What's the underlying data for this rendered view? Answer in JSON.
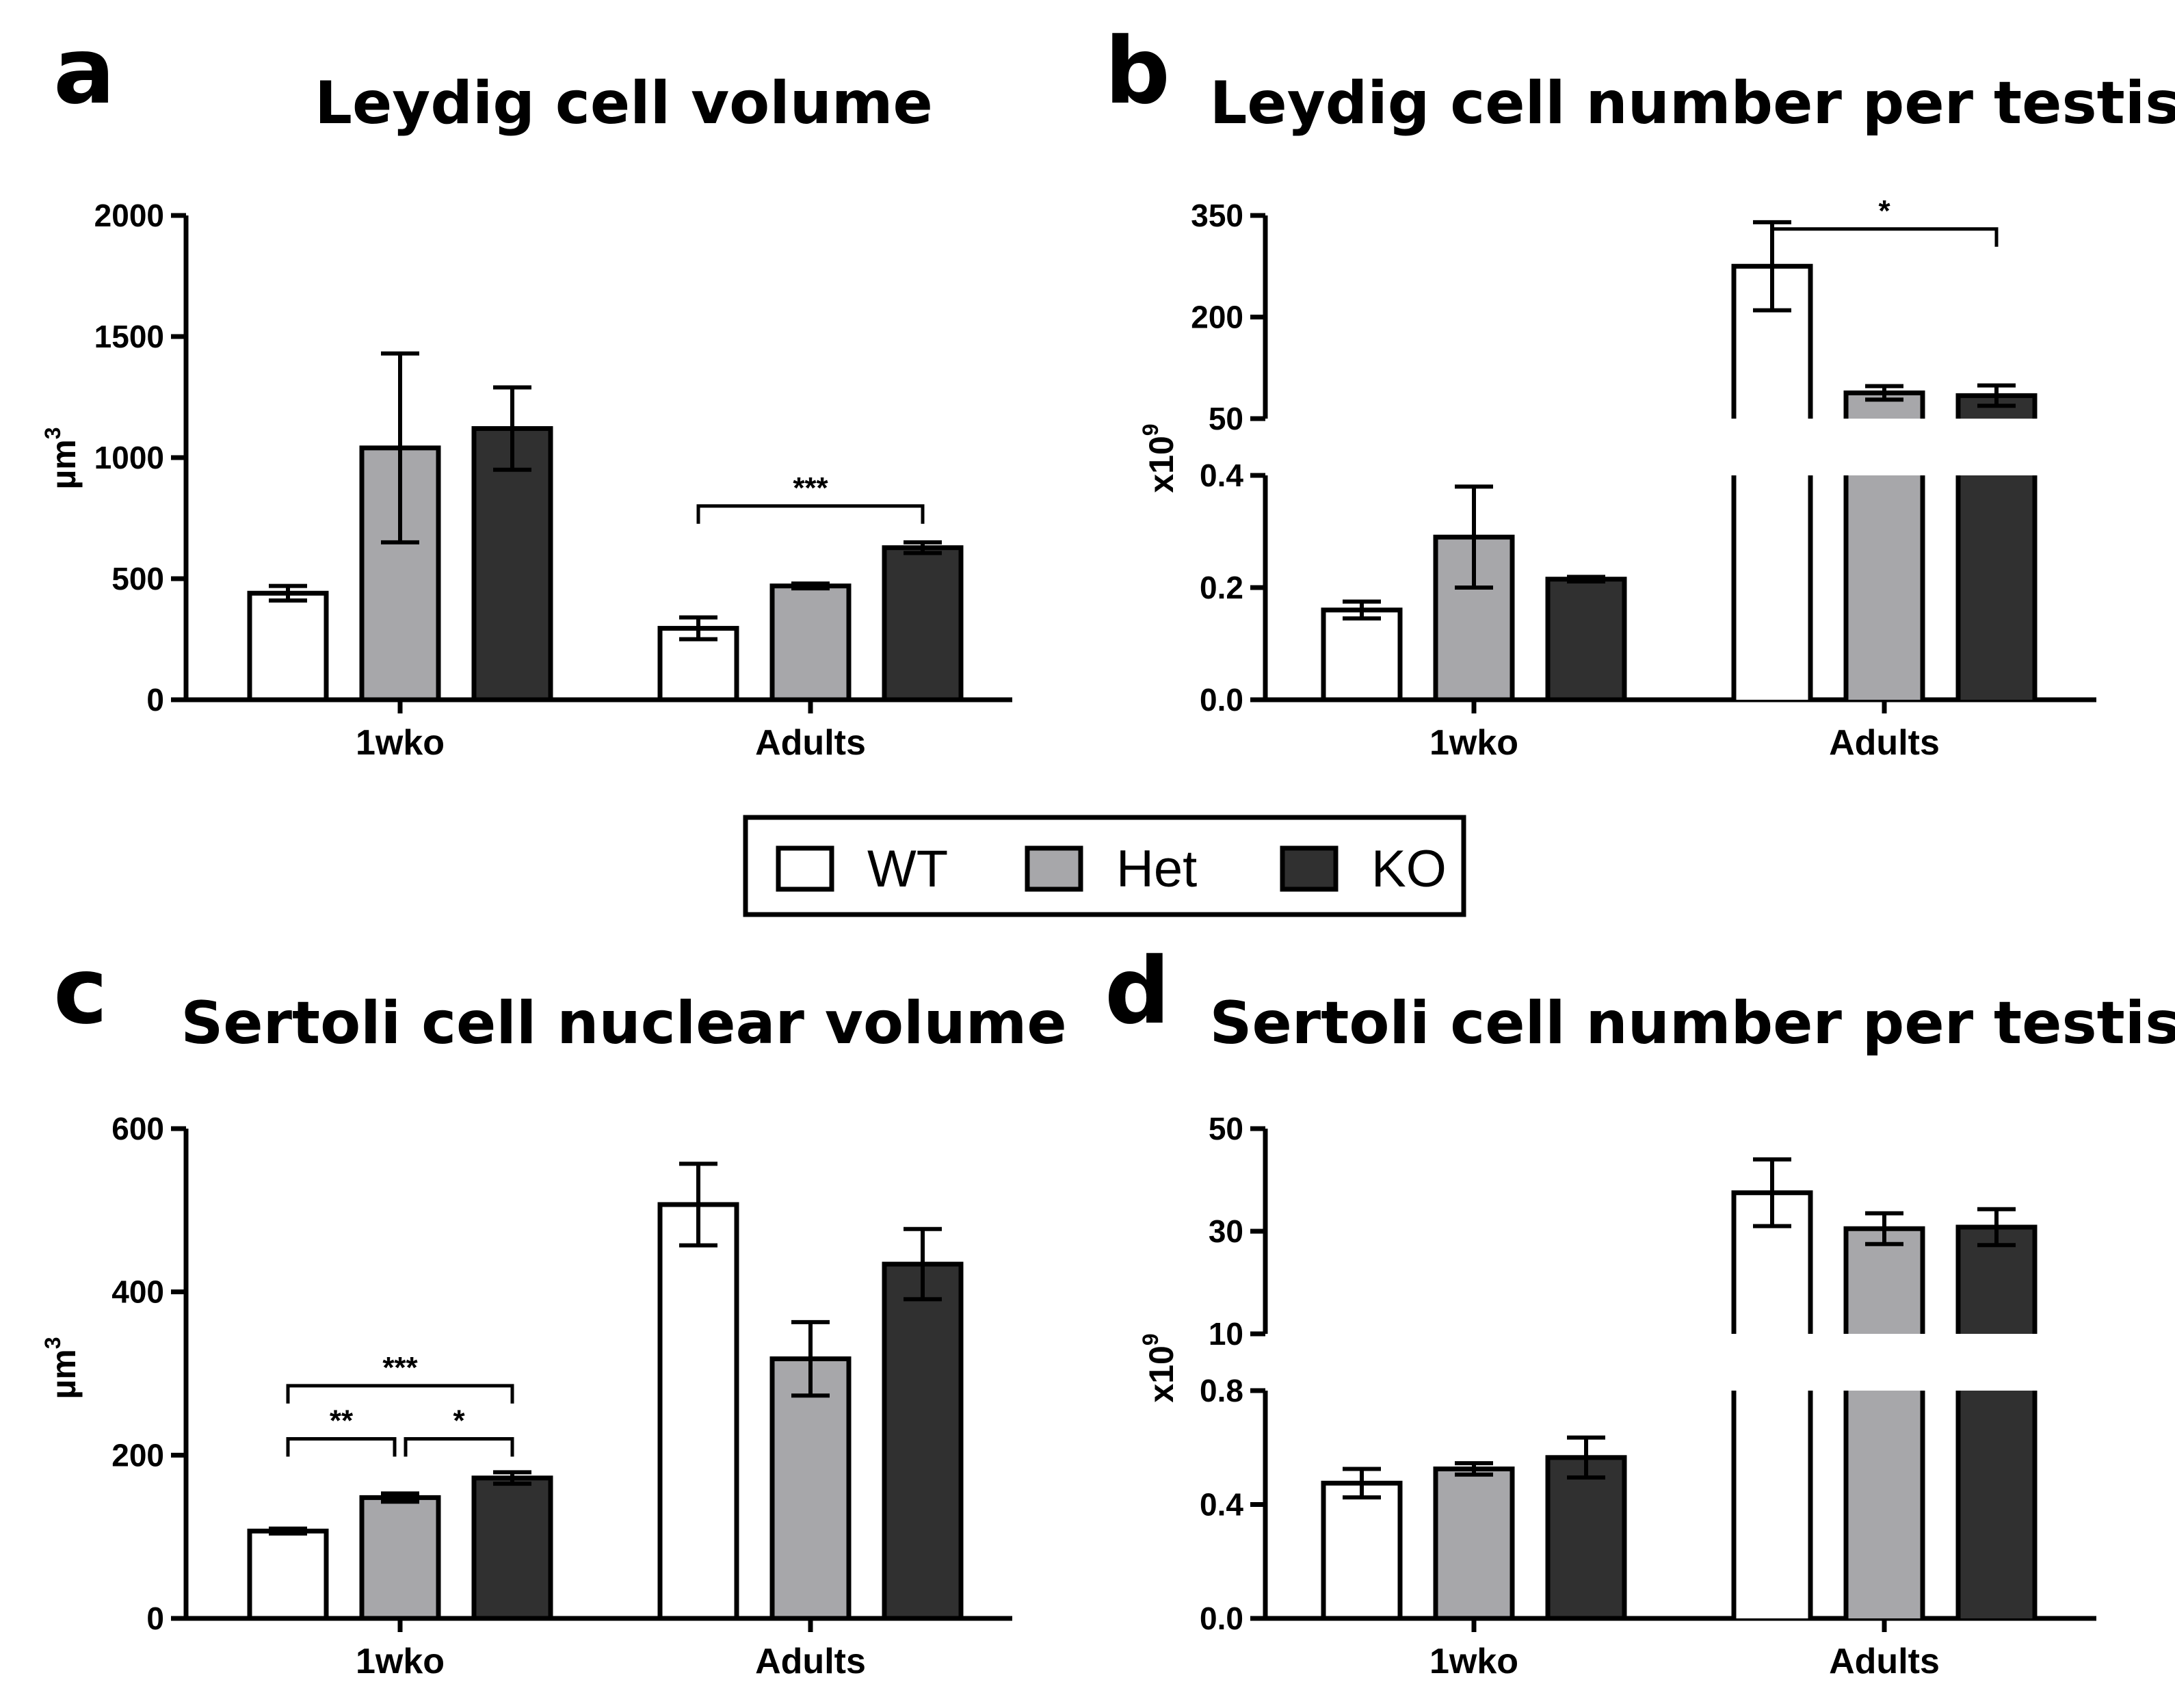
{
  "legend": {
    "entries": [
      {
        "name": "WT",
        "color": "#ffffff"
      },
      {
        "name": "Het",
        "color": "#a7a7aa"
      },
      {
        "name": "KO",
        "color": "#303030"
      }
    ]
  },
  "chart_data": [
    {
      "panel": "a",
      "type": "bar",
      "title": "Leydig cell volume",
      "ylabel": "µm",
      "ylabel_sup": "3",
      "categories": [
        "1wko",
        "Adults"
      ],
      "ylim": [
        0,
        2000
      ],
      "yticks": [
        "0",
        "500",
        "1000",
        "1500",
        "2000"
      ],
      "series": [
        {
          "name": "WT",
          "values": [
            440,
            295
          ],
          "errors": [
            30,
            45
          ]
        },
        {
          "name": "Het",
          "values": [
            1040,
            470
          ],
          "errors": [
            390,
            10
          ]
        },
        {
          "name": "KO",
          "values": [
            1120,
            628
          ],
          "errors": [
            170,
            22
          ]
        }
      ],
      "significance": [
        {
          "group": "Adults",
          "from": "WT",
          "to": "KO",
          "label": "***",
          "at": 800
        }
      ]
    },
    {
      "panel": "b",
      "type": "bar",
      "title": "Leydig cell number per testis",
      "ylabel": "x10",
      "ylabel_sup": "9",
      "categories": [
        "1wko",
        "Adults"
      ],
      "axis_break": {
        "lower_ylim": [
          0,
          0.4
        ],
        "upper_ylim": [
          50,
          350
        ],
        "lower_ticks": [
          "0.0",
          "0.2",
          "0.4"
        ],
        "upper_ticks": [
          "50",
          "200",
          "350"
        ]
      },
      "series": [
        {
          "name": "WT",
          "values": [
            0.16,
            275
          ],
          "errors": [
            0.015,
            65
          ]
        },
        {
          "name": "Het",
          "values": [
            0.29,
            88
          ],
          "errors": [
            0.09,
            10
          ]
        },
        {
          "name": "KO",
          "values": [
            0.215,
            84
          ],
          "errors": [
            0.004,
            15
          ]
        }
      ],
      "significance": [
        {
          "group": "Adults",
          "from": "WT",
          "to": "KO",
          "label": "*",
          "at": 330
        }
      ]
    },
    {
      "panel": "c",
      "type": "bar",
      "title": "Sertoli cell nuclear volume",
      "ylabel": "µm",
      "ylabel_sup": "3",
      "categories": [
        "1wko",
        "Adults"
      ],
      "ylim": [
        0,
        600
      ],
      "yticks": [
        "0",
        "200",
        "400",
        "600"
      ],
      "series": [
        {
          "name": "WT",
          "values": [
            107,
            507
          ],
          "errors": [
            3,
            50
          ]
        },
        {
          "name": "Het",
          "values": [
            148,
            318
          ],
          "errors": [
            5,
            45
          ]
        },
        {
          "name": "KO",
          "values": [
            172,
            434
          ],
          "errors": [
            7,
            43
          ]
        }
      ],
      "significance": [
        {
          "group": "1wko",
          "from": "WT",
          "to": "Het",
          "label": "**",
          "at": 220
        },
        {
          "group": "1wko",
          "from": "Het",
          "to": "KO",
          "label": "*",
          "at": 220
        },
        {
          "group": "1wko",
          "from": "WT",
          "to": "KO",
          "label": "***",
          "at": 285
        }
      ]
    },
    {
      "panel": "d",
      "type": "bar",
      "title": "Sertoli cell number per testis",
      "ylabel": "x10",
      "ylabel_sup": "9",
      "categories": [
        "1wko",
        "Adults"
      ],
      "axis_break": {
        "lower_ylim": [
          0,
          0.8
        ],
        "upper_ylim": [
          10,
          50
        ],
        "lower_ticks": [
          "0.0",
          "0.4",
          "0.8"
        ],
        "upper_ticks": [
          "10",
          "30",
          "50"
        ]
      },
      "series": [
        {
          "name": "WT",
          "values": [
            0.475,
            37.5
          ],
          "errors": [
            0.05,
            6.5
          ]
        },
        {
          "name": "Het",
          "values": [
            0.525,
            30.5
          ],
          "errors": [
            0.02,
            3
          ]
        },
        {
          "name": "KO",
          "values": [
            0.565,
            30.8
          ],
          "errors": [
            0.07,
            3.5
          ]
        }
      ],
      "significance": []
    }
  ]
}
